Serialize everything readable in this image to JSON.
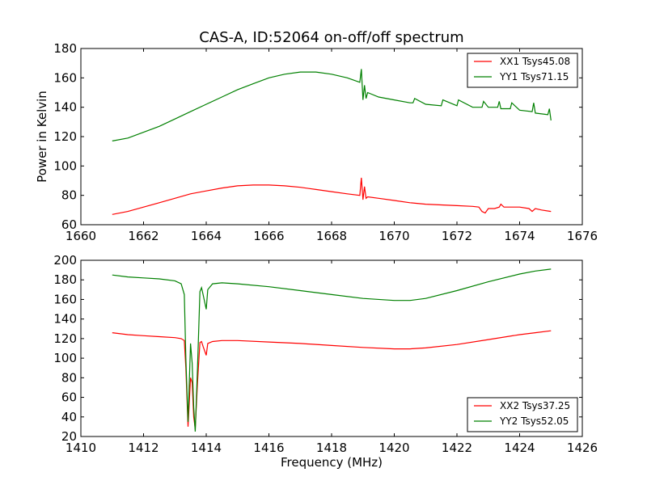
{
  "chart_data": [
    {
      "type": "line",
      "title": "CAS-A, ID:52064 on-off/off spectrum",
      "xlabel": "",
      "ylabel": "Power in Kelvin",
      "xlim": [
        1660,
        1676
      ],
      "ylim": [
        60,
        180
      ],
      "xticks": [
        1660,
        1662,
        1664,
        1666,
        1668,
        1670,
        1672,
        1674,
        1676
      ],
      "yticks": [
        60,
        80,
        100,
        120,
        140,
        160,
        180
      ],
      "legend_position": "upper right",
      "series": [
        {
          "name": "XX1 Tsys45.08",
          "color": "#ff0000",
          "x": [
            1661.0,
            1661.5,
            1662.0,
            1662.5,
            1663.0,
            1663.5,
            1664.0,
            1664.5,
            1665.0,
            1665.5,
            1666.0,
            1666.5,
            1667.0,
            1667.5,
            1668.0,
            1668.5,
            1668.9,
            1668.95,
            1669.0,
            1669.05,
            1669.1,
            1669.15,
            1669.5,
            1670.0,
            1670.5,
            1671.0,
            1671.5,
            1672.0,
            1672.5,
            1672.7,
            1672.8,
            1672.9,
            1673.0,
            1673.2,
            1673.35,
            1673.4,
            1673.5,
            1674.0,
            1674.3,
            1674.4,
            1674.5,
            1674.7,
            1675.0
          ],
          "y": [
            67,
            69,
            72,
            75,
            78,
            81,
            83,
            85,
            86.5,
            87,
            87,
            86.5,
            85.5,
            84,
            82.5,
            81,
            80,
            92,
            77,
            86,
            78,
            79,
            78,
            76.5,
            75,
            74,
            73.5,
            73,
            72.5,
            72,
            69,
            68,
            71,
            71,
            72,
            74,
            72,
            72,
            71,
            69,
            71,
            70,
            69
          ]
        },
        {
          "name": "YY1 Tsys71.15",
          "color": "#008000",
          "x": [
            1661.0,
            1661.5,
            1662.0,
            1662.5,
            1663.0,
            1663.5,
            1664.0,
            1664.5,
            1665.0,
            1665.5,
            1666.0,
            1666.5,
            1667.0,
            1667.5,
            1668.0,
            1668.5,
            1668.9,
            1668.95,
            1669.0,
            1669.05,
            1669.1,
            1669.15,
            1669.5,
            1670.0,
            1670.5,
            1670.6,
            1670.65,
            1671.0,
            1671.5,
            1671.55,
            1672.0,
            1672.05,
            1672.5,
            1672.8,
            1672.85,
            1673.0,
            1673.3,
            1673.35,
            1673.4,
            1673.7,
            1673.75,
            1674.0,
            1674.4,
            1674.45,
            1674.5,
            1674.9,
            1674.95,
            1675.0
          ],
          "y": [
            117,
            119,
            123,
            127,
            132,
            137,
            142,
            147,
            152,
            156,
            160,
            162.5,
            164,
            164,
            162.5,
            160,
            157,
            166,
            145,
            155,
            146,
            150,
            147,
            145,
            143,
            143,
            146,
            142,
            141,
            145,
            141,
            145,
            140,
            140,
            144,
            140,
            140,
            144,
            139,
            139,
            143,
            138,
            137,
            143,
            136,
            135,
            139,
            131
          ]
        }
      ]
    },
    {
      "type": "line",
      "title": "",
      "xlabel": "Frequency (MHz)",
      "ylabel": "",
      "xlim": [
        1410,
        1426
      ],
      "ylim": [
        20,
        200
      ],
      "xticks": [
        1410,
        1412,
        1414,
        1416,
        1418,
        1420,
        1422,
        1424,
        1426
      ],
      "yticks": [
        20,
        40,
        60,
        80,
        100,
        120,
        140,
        160,
        180,
        200
      ],
      "legend_position": "lower right",
      "series": [
        {
          "name": "XX2 Tsys37.25",
          "color": "#ff0000",
          "x": [
            1411.0,
            1411.5,
            1412.0,
            1412.5,
            1413.0,
            1413.2,
            1413.3,
            1413.35,
            1413.42,
            1413.5,
            1413.55,
            1413.6,
            1413.65,
            1413.72,
            1413.8,
            1413.85,
            1413.9,
            1414.0,
            1414.05,
            1414.2,
            1414.5,
            1415.0,
            1416.0,
            1417.0,
            1418.0,
            1419.0,
            1420.0,
            1420.5,
            1421.0,
            1422.0,
            1423.0,
            1424.0,
            1424.5,
            1425.0
          ],
          "y": [
            126,
            124,
            123,
            122,
            121,
            120,
            118,
            90,
            30,
            80,
            75,
            40,
            28,
            75,
            116,
            117,
            112,
            103,
            115,
            117,
            118,
            118,
            116.5,
            115,
            113,
            111,
            109.5,
            109.5,
            110.5,
            114,
            119,
            124,
            126,
            128
          ]
        },
        {
          "name": "YY2 Tsys52.05",
          "color": "#008000",
          "x": [
            1411.0,
            1411.5,
            1412.0,
            1412.5,
            1413.0,
            1413.2,
            1413.3,
            1413.35,
            1413.42,
            1413.5,
            1413.55,
            1413.6,
            1413.65,
            1413.72,
            1413.8,
            1413.85,
            1413.9,
            1414.0,
            1414.05,
            1414.2,
            1414.5,
            1415.0,
            1416.0,
            1417.0,
            1418.0,
            1419.0,
            1420.0,
            1420.5,
            1421.0,
            1422.0,
            1423.0,
            1424.0,
            1424.5,
            1425.0
          ],
          "y": [
            185,
            183,
            182,
            181,
            179,
            176,
            165,
            100,
            35,
            115,
            95,
            50,
            25,
            90,
            168,
            172,
            165,
            150,
            170,
            176,
            177,
            176,
            173,
            169,
            165,
            161,
            159,
            159,
            161,
            169,
            178,
            186,
            189,
            191
          ]
        }
      ]
    }
  ]
}
